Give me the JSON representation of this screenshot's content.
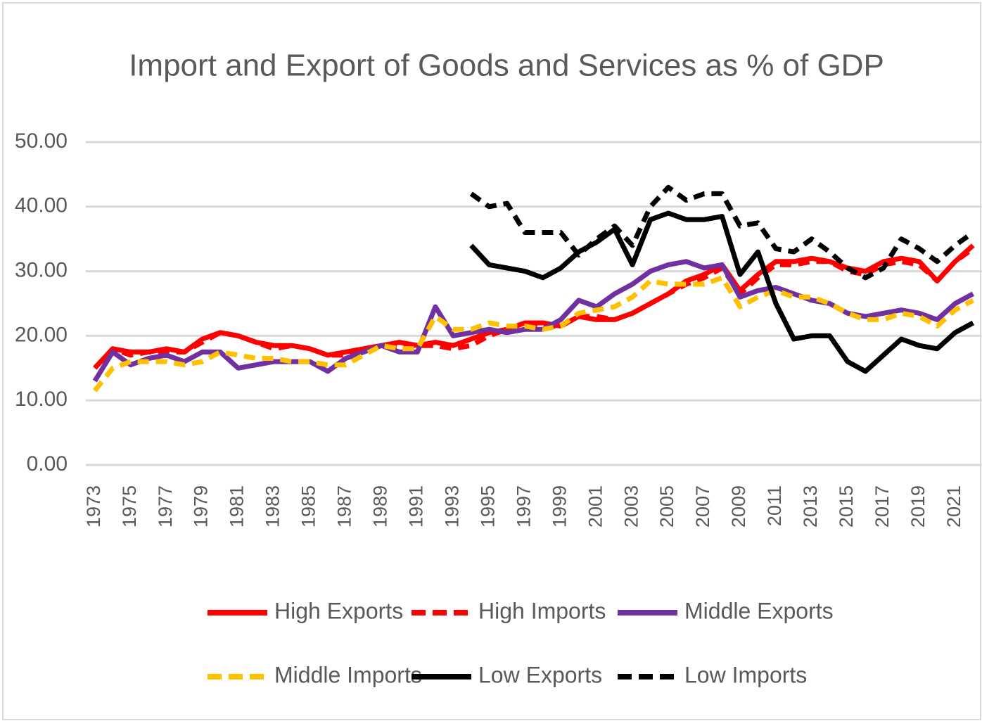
{
  "chart_data": {
    "type": "line",
    "title": "Import and Export of Goods and Services as % of GDP",
    "categories": [
      "1973",
      null,
      "1975",
      null,
      "1977",
      null,
      "1979",
      null,
      "1981",
      null,
      "1983",
      null,
      "1985",
      null,
      "1987",
      null,
      "1989",
      null,
      "1991",
      null,
      "1993",
      null,
      "1995",
      null,
      "1997",
      null,
      "1999",
      null,
      "2001",
      null,
      "2003",
      null,
      "2005",
      null,
      "2007",
      null,
      "2009",
      null,
      "2011",
      null,
      "2013",
      null,
      "2015",
      null,
      "2017",
      null,
      "2019",
      null,
      "2021",
      null
    ],
    "ylim": [
      0,
      50
    ],
    "yticks": [
      {
        "value": 0,
        "label": "0.00"
      },
      {
        "value": 10,
        "label": "10.00"
      },
      {
        "value": 20,
        "label": "20.00"
      },
      {
        "value": 30,
        "label": "30.00"
      },
      {
        "value": 40,
        "label": "40.00"
      },
      {
        "value": 50,
        "label": "50.00"
      }
    ],
    "grid": true,
    "legend": "bottom",
    "series": [
      {
        "name": "High Exports",
        "color": "#ff0000",
        "dashed": false,
        "values": [
          15,
          18,
          17.5,
          17.5,
          18,
          17.5,
          19.5,
          20.5,
          20,
          19,
          18.5,
          18.5,
          18,
          17,
          17.5,
          18,
          18.5,
          19,
          18.5,
          19,
          18.5,
          19.5,
          20.5,
          21,
          22,
          22,
          21.5,
          23,
          22.5,
          22.5,
          23.5,
          25,
          26.5,
          28.5,
          29.5,
          31,
          27,
          29.5,
          31.5,
          31.5,
          32,
          31.5,
          30.5,
          30,
          31.5,
          32,
          31.5,
          28.5,
          31.5,
          34
        ]
      },
      {
        "name": "High Imports",
        "color": "#ff0000",
        "dashed": true,
        "values": [
          15,
          18,
          17,
          17.5,
          17.5,
          17.5,
          19,
          20.5,
          20,
          19,
          18,
          18.5,
          18,
          17,
          17,
          18,
          18.5,
          18.5,
          18.5,
          18.5,
          18,
          18.5,
          20,
          21,
          22,
          21.5,
          21.5,
          23,
          23,
          22.5,
          23.5,
          25,
          26.5,
          28,
          29,
          30.5,
          26.5,
          29,
          31,
          31,
          31.5,
          31.5,
          30,
          29.5,
          31,
          31.5,
          31,
          28.5,
          31.5,
          33.5
        ]
      },
      {
        "name": "Middle Exports",
        "color": "#7030a0",
        "dashed": false,
        "values": [
          13,
          17.5,
          15.5,
          16.5,
          17,
          16,
          17.5,
          17.5,
          15,
          15.5,
          16,
          16,
          16,
          14.5,
          16.5,
          17.5,
          18.5,
          17.5,
          17.5,
          24.5,
          20,
          20.5,
          21,
          20.5,
          21,
          21,
          22.5,
          25.5,
          24.5,
          26.5,
          28,
          30,
          31,
          31.5,
          30.5,
          31,
          26,
          27,
          27.5,
          26.5,
          25.5,
          25,
          23.5,
          23,
          23.5,
          24,
          23.5,
          22.5,
          25,
          26.5
        ]
      },
      {
        "name": "Middle Imports",
        "color": "#ffc000",
        "dashed": true,
        "values": [
          11.5,
          15,
          16,
          16,
          16,
          15.5,
          16,
          17.5,
          17,
          16.5,
          16.5,
          16,
          16,
          15.5,
          15.5,
          17,
          18.5,
          18,
          18,
          23,
          21,
          21,
          22,
          21.5,
          21.5,
          21,
          21.5,
          23.5,
          24,
          24.5,
          26,
          28.5,
          28,
          28,
          28,
          29,
          24.5,
          26,
          27,
          26,
          26,
          25,
          23.5,
          22.5,
          22.5,
          23.5,
          23,
          21.5,
          24,
          25.5
        ]
      },
      {
        "name": "Low Exports",
        "color": "#000000",
        "dashed": false,
        "values": [
          null,
          null,
          null,
          null,
          null,
          null,
          null,
          null,
          null,
          null,
          null,
          null,
          null,
          null,
          null,
          null,
          null,
          null,
          null,
          null,
          null,
          34,
          31,
          30.5,
          30,
          29,
          30.5,
          33,
          34.5,
          36.5,
          31,
          38,
          39,
          38,
          38,
          38.5,
          29.5,
          33,
          25,
          19.5,
          20,
          20,
          16,
          14.5,
          17,
          19.5,
          18.5,
          18,
          20.5,
          22
        ]
      },
      {
        "name": "Low Imports",
        "color": "#000000",
        "dashed": true,
        "values": [
          null,
          null,
          null,
          null,
          null,
          null,
          null,
          null,
          null,
          null,
          null,
          null,
          null,
          null,
          null,
          null,
          null,
          null,
          null,
          null,
          null,
          42,
          40,
          40.5,
          36,
          36,
          36,
          32.5,
          35,
          37,
          34,
          40,
          43,
          41,
          42,
          42,
          37,
          37.5,
          33.5,
          33,
          35,
          33,
          30.5,
          29,
          30.5,
          35,
          33.5,
          31.5,
          34,
          36
        ]
      }
    ]
  }
}
